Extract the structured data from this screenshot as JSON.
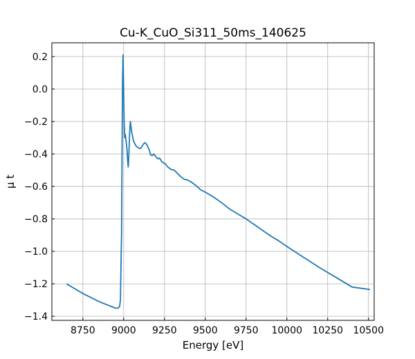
{
  "chart_data": {
    "type": "line",
    "title": "Cu-K_CuO_Si311_50ms_140625",
    "xlabel": "Energy [eV]",
    "ylabel": "μ t",
    "xlim": [
      8560,
      10535
    ],
    "ylim": [
      -1.425,
      0.285
    ],
    "grid": true,
    "x_ticks": [
      {
        "value": 8750,
        "label": "8750"
      },
      {
        "value": 9000,
        "label": "9000"
      },
      {
        "value": 9250,
        "label": "9250"
      },
      {
        "value": 9500,
        "label": "9500"
      },
      {
        "value": 9750,
        "label": "9750"
      },
      {
        "value": 10000,
        "label": "10000"
      },
      {
        "value": 10250,
        "label": "10250"
      },
      {
        "value": 10500,
        "label": "10500"
      }
    ],
    "y_ticks": [
      {
        "value": 0.2,
        "label": "0.2"
      },
      {
        "value": 0.0,
        "label": "0.0"
      },
      {
        "value": -0.2,
        "label": "−0.2"
      },
      {
        "value": -0.4,
        "label": "−0.4"
      },
      {
        "value": -0.6,
        "label": "−0.6"
      },
      {
        "value": -0.8,
        "label": "−0.8"
      },
      {
        "value": -1.0,
        "label": "−1.0"
      },
      {
        "value": -1.2,
        "label": "−1.2"
      },
      {
        "value": -1.4,
        "label": "−1.4"
      }
    ],
    "series": [
      {
        "color": "#1f77b4",
        "points": [
          [
            8650,
            -1.2
          ],
          [
            8750,
            -1.26
          ],
          [
            8850,
            -1.31
          ],
          [
            8950,
            -1.35
          ],
          [
            8965,
            -1.35
          ],
          [
            8975,
            -1.34
          ],
          [
            8980,
            -1.3
          ],
          [
            8985,
            -1.0
          ],
          [
            8987,
            -0.9
          ],
          [
            8990,
            -0.4
          ],
          [
            8993,
            0.05
          ],
          [
            8996,
            0.21
          ],
          [
            8999,
            0.03
          ],
          [
            9003,
            -0.22
          ],
          [
            9007,
            -0.3
          ],
          [
            9010,
            -0.28
          ],
          [
            9015,
            -0.32
          ],
          [
            9020,
            -0.37
          ],
          [
            9025,
            -0.45
          ],
          [
            9028,
            -0.48
          ],
          [
            9032,
            -0.4
          ],
          [
            9036,
            -0.28
          ],
          [
            9041,
            -0.2
          ],
          [
            9045,
            -0.23
          ],
          [
            9050,
            -0.27
          ],
          [
            9060,
            -0.32
          ],
          [
            9075,
            -0.35
          ],
          [
            9095,
            -0.365
          ],
          [
            9105,
            -0.365
          ],
          [
            9120,
            -0.34
          ],
          [
            9130,
            -0.33
          ],
          [
            9140,
            -0.34
          ],
          [
            9155,
            -0.37
          ],
          [
            9165,
            -0.405
          ],
          [
            9175,
            -0.41
          ],
          [
            9185,
            -0.4
          ],
          [
            9200,
            -0.42
          ],
          [
            9210,
            -0.43
          ],
          [
            9220,
            -0.425
          ],
          [
            9235,
            -0.45
          ],
          [
            9255,
            -0.46
          ],
          [
            9270,
            -0.48
          ],
          [
            9290,
            -0.495
          ],
          [
            9310,
            -0.5
          ],
          [
            9330,
            -0.52
          ],
          [
            9350,
            -0.54
          ],
          [
            9370,
            -0.555
          ],
          [
            9390,
            -0.56
          ],
          [
            9410,
            -0.57
          ],
          [
            9430,
            -0.585
          ],
          [
            9450,
            -0.6
          ],
          [
            9470,
            -0.62
          ],
          [
            9500,
            -0.635
          ],
          [
            9550,
            -0.665
          ],
          [
            9600,
            -0.7
          ],
          [
            9650,
            -0.74
          ],
          [
            9700,
            -0.77
          ],
          [
            9750,
            -0.8
          ],
          [
            9800,
            -0.835
          ],
          [
            9850,
            -0.87
          ],
          [
            9900,
            -0.905
          ],
          [
            9950,
            -0.935
          ],
          [
            10000,
            -0.97
          ],
          [
            10100,
            -1.035
          ],
          [
            10200,
            -1.1
          ],
          [
            10300,
            -1.16
          ],
          [
            10400,
            -1.22
          ],
          [
            10510,
            -1.235
          ]
        ]
      }
    ]
  }
}
